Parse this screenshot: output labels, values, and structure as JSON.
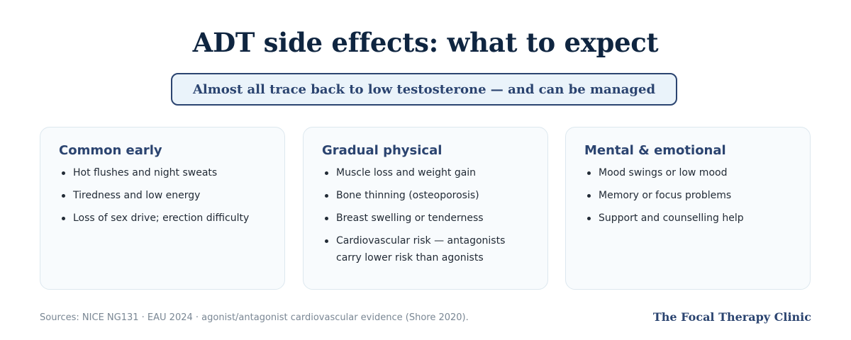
{
  "header": {
    "title": "ADT side effects: what to expect",
    "callout": "Almost all trace back to low testosterone — and can be managed"
  },
  "cards": [
    {
      "title": "Common early",
      "items": [
        "Hot flushes and night sweats",
        "Tiredness and low energy",
        "Loss of sex drive; erection difficulty"
      ]
    },
    {
      "title": "Gradual physical",
      "items": [
        "Muscle loss and weight gain",
        "Bone thinning (osteoporosis)",
        "Breast swelling or tenderness",
        "Cardiovascular risk — antagonists carry lower risk than agonists"
      ]
    },
    {
      "title": "Mental & emotional",
      "items": [
        "Mood swings or low mood",
        "Memory or focus problems",
        "Support and counselling help"
      ]
    }
  ],
  "footer": {
    "sources": "Sources: NICE NG131 · EAU 2024 · agonist/antagonist cardiovascular evidence (Shore 2020).",
    "brand": "The Focal Therapy Clinic"
  },
  "colors": {
    "title": "#0f2540",
    "accent": "#2b4470",
    "callout_bg": "#eaf3fa",
    "card_bg": "#f8fbfd",
    "card_border": "#dde8ef",
    "muted": "#7a8794"
  }
}
